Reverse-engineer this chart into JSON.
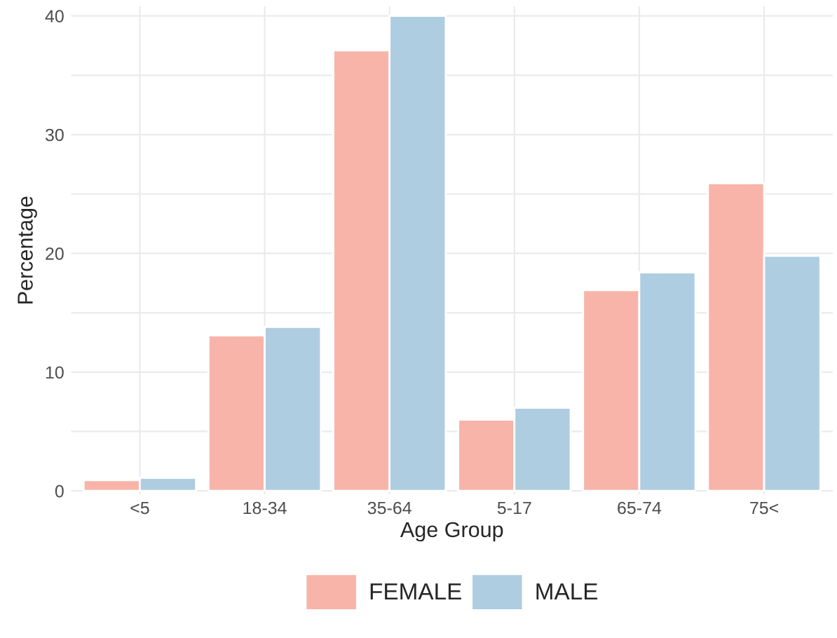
{
  "chart_data": {
    "type": "bar",
    "xlabel": "Age Group",
    "ylabel": "Percentage",
    "categories": [
      "<5",
      "18-34",
      "35-64",
      "5-17",
      "65-74",
      "75<"
    ],
    "series": [
      {
        "name": "FEMALE",
        "color": "#f9b4aa",
        "values": [
          0.9,
          13.1,
          37.1,
          6.0,
          16.9,
          25.9
        ]
      },
      {
        "name": "MALE",
        "color": "#afcde1",
        "values": [
          1.1,
          13.8,
          40.0,
          7.0,
          18.4,
          19.8
        ]
      }
    ],
    "ylim": [
      -0.3,
      40.8
    ],
    "yticks": [
      0,
      {
        "value": 5,
        "label": null
      },
      10,
      {
        "value": 15,
        "label": null
      },
      20,
      {
        "value": 25,
        "label": null
      },
      30,
      {
        "value": 35,
        "label": null
      },
      40
    ],
    "grid": true,
    "legend": "bottom"
  }
}
